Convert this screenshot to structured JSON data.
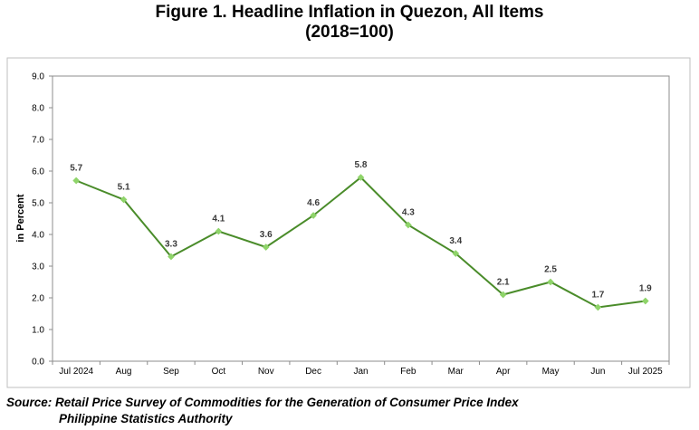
{
  "chart_data": {
    "type": "line",
    "title": "Figure 1. Headline Inflation in Quezon, All Items",
    "subtitle": "(2018=100)",
    "ylabel": "in Percent",
    "xlabel": "",
    "ylim": [
      0,
      9
    ],
    "yticks": [
      "0.0",
      "1.0",
      "2.0",
      "3.0",
      "4.0",
      "5.0",
      "6.0",
      "7.0",
      "8.0",
      "9.0"
    ],
    "categories": [
      "Jul 2024",
      "Aug",
      "Sep",
      "Oct",
      "Nov",
      "Dec",
      "Jan",
      "Feb",
      "Mar",
      "Apr",
      "May",
      "Jun",
      "Jul 2025"
    ],
    "series": [
      {
        "values": [
          5.7,
          5.1,
          3.3,
          4.1,
          3.6,
          4.6,
          5.8,
          4.3,
          3.4,
          2.1,
          2.5,
          1.7,
          1.9
        ],
        "labels": [
          "5.7",
          "5.1",
          "3.3",
          "4.1",
          "3.6",
          "4.6",
          "5.8",
          "4.3",
          "3.4",
          "2.1",
          "2.5",
          "1.7",
          "1.9"
        ],
        "color": "#4a8c2a",
        "marker_color": "#8fd46a"
      }
    ],
    "grid": false,
    "legend": "none"
  },
  "source": {
    "line1": "Source: Retail Price Survey of Commodities for the Generation of Consumer Price Index",
    "line2": "Philippine Statistics Authority"
  }
}
